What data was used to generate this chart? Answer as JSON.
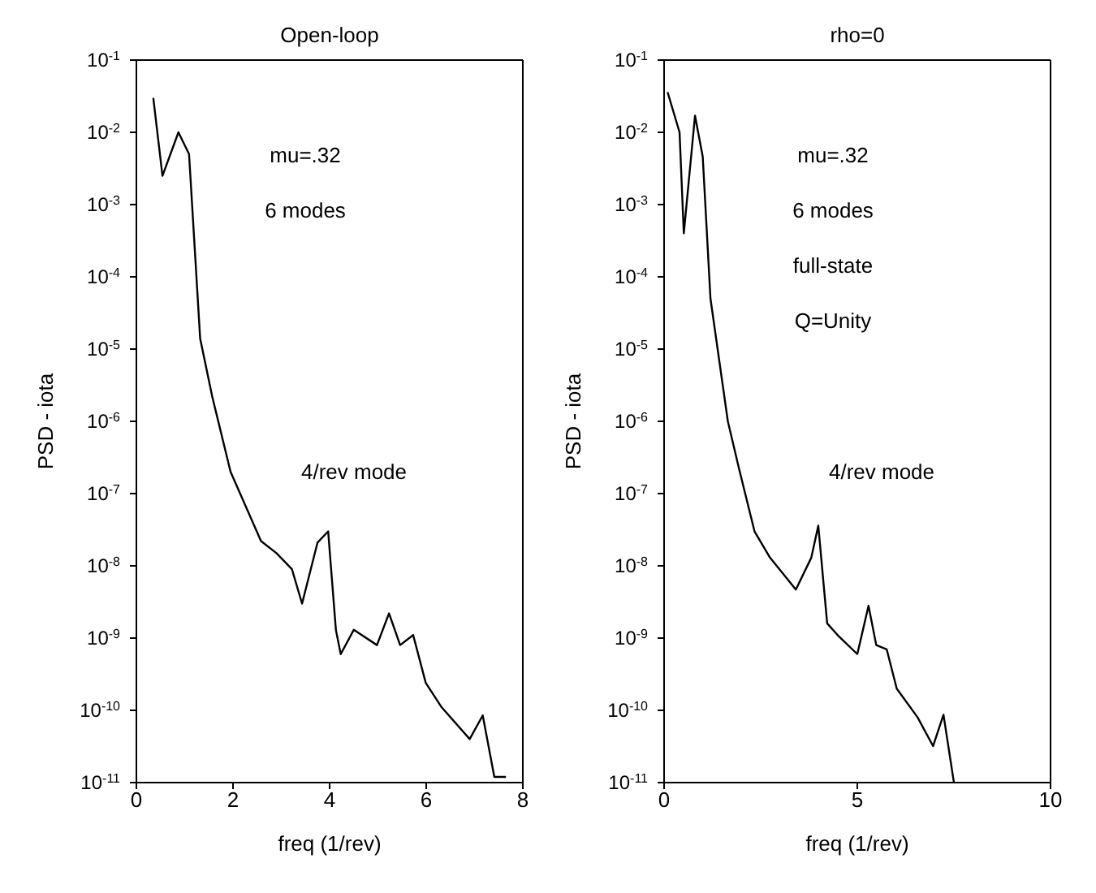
{
  "chart_data": [
    {
      "type": "line",
      "title": "Open-loop",
      "xlabel": "freq (1/rev)",
      "ylabel": "PSD - iota",
      "log": "y",
      "color": "#000000",
      "x": [
        0.35,
        0.54,
        0.87,
        1.09,
        1.32,
        1.57,
        1.95,
        2.58,
        2.9,
        3.22,
        3.43,
        3.75,
        3.97,
        4.13,
        4.23,
        4.5,
        4.98,
        5.23,
        5.46,
        5.73,
        5.99,
        6.32,
        6.9,
        7.17,
        7.41,
        7.65
      ],
      "values": [
        0.03,
        0.0025,
        0.01,
        0.005,
        1.4e-05,
        2.2e-06,
        2e-07,
        2.2e-08,
        1.5e-08,
        9e-09,
        3e-09,
        2.1e-08,
        3e-08,
        1.3e-09,
        6e-10,
        1.3e-09,
        8e-10,
        2.2e-09,
        8e-10,
        1.1e-09,
        2.4e-10,
        1.1e-10,
        4e-11,
        8.5e-11,
        1.2e-11,
        1.2e-11
      ],
      "xlim": [
        0,
        8
      ],
      "xticks": [
        0,
        2,
        4,
        6,
        8
      ],
      "ylim": [
        1e-11,
        0.1
      ],
      "yticks": [
        {
          "value": 0.1,
          "label": "10$^{-1}$"
        },
        {
          "value": 0.01,
          "label": "10$^{-2}$"
        },
        {
          "value": 0.001,
          "label": "10$^{-3}$"
        },
        {
          "value": 0.0001,
          "label": "10$^{-4}$"
        },
        {
          "value": 1e-05,
          "label": "10$^{-5}$"
        },
        {
          "value": 1e-06,
          "label": "10$^{-6}$"
        },
        {
          "value": 1e-07,
          "label": "10$^{-7}$"
        },
        {
          "value": 1e-08,
          "label": "10$^{-8}$"
        },
        {
          "value": 1e-09,
          "label": "10$^{-9}$"
        },
        {
          "value": 1e-10,
          "label": "10$^{-10}$"
        },
        {
          "value": 1e-11,
          "label": "10$^{-11}$"
        }
      ],
      "annotations": [
        "mu=.32",
        "6 modes",
        "4/rev mode"
      ]
    },
    {
      "type": "line",
      "title": "rho=0",
      "xlabel": "freq (1/rev)",
      "ylabel": "PSD - iota",
      "log": "y",
      "color": "#000000",
      "x": [
        0.09,
        0.4,
        0.51,
        0.8,
        1.0,
        1.2,
        1.65,
        1.94,
        2.34,
        2.74,
        3.41,
        3.81,
        3.99,
        4.22,
        4.49,
        5.0,
        5.29,
        5.49,
        5.76,
        6.02,
        6.56,
        6.96,
        7.23,
        7.5
      ],
      "values": [
        0.036,
        0.01,
        0.0004,
        0.017,
        0.0046,
        5e-05,
        1e-06,
        2.2e-07,
        3e-08,
        1.3e-08,
        4.7e-09,
        1.3e-08,
        3.6e-08,
        1.6e-09,
        1.1e-09,
        6e-10,
        2.8e-09,
        8e-10,
        7e-10,
        2e-10,
        8e-11,
        3.2e-11,
        8.7e-11,
        1e-11
      ],
      "xlim": [
        0,
        10
      ],
      "xticks": [
        0,
        5,
        10
      ],
      "ylim": [
        1e-11,
        0.1
      ],
      "yticks": [
        {
          "value": 0.1,
          "label": "10$^{-1}$"
        },
        {
          "value": 0.01,
          "label": "10$^{-2}$"
        },
        {
          "value": 0.001,
          "label": "10$^{-3}$"
        },
        {
          "value": 0.0001,
          "label": "10$^{-4}$"
        },
        {
          "value": 1e-05,
          "label": "10$^{-5}$"
        },
        {
          "value": 1e-06,
          "label": "10$^{-6}$"
        },
        {
          "value": 1e-07,
          "label": "10$^{-7}$"
        },
        {
          "value": 1e-08,
          "label": "10$^{-8}$"
        },
        {
          "value": 1e-09,
          "label": "10$^{-9}$"
        },
        {
          "value": 1e-10,
          "label": "10$^{-10}$"
        },
        {
          "value": 1e-11,
          "label": "10$^{-11}$"
        }
      ],
      "annotations": [
        "mu=.32",
        "6 modes",
        "full-state",
        "Q=Unity",
        "4/rev mode"
      ]
    }
  ]
}
